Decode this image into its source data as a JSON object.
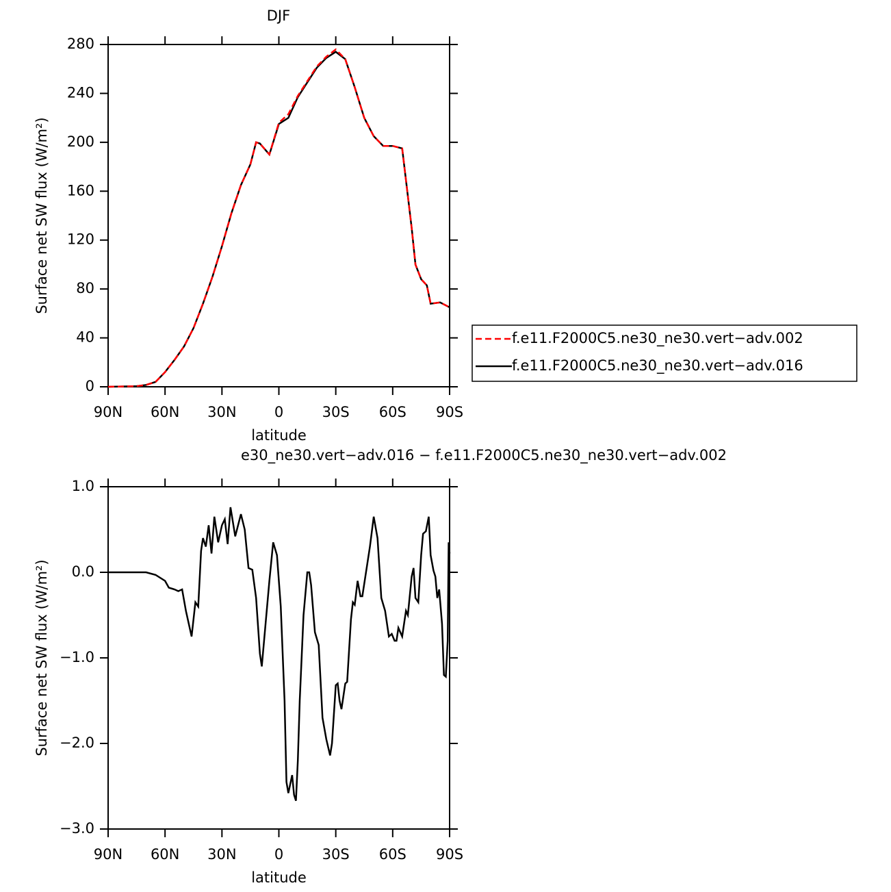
{
  "chart_data": [
    {
      "type": "line",
      "title": "DJF",
      "xlabel": "latitude",
      "ylabel": "Surface net SW flux (W/m²)",
      "x": [
        90,
        75,
        70,
        65,
        60,
        55,
        50,
        45,
        40,
        35,
        30,
        25,
        20,
        15,
        12,
        10,
        5,
        0,
        -5,
        -10,
        -15,
        -20,
        -25,
        -30,
        -35,
        -40,
        -45,
        -50,
        -55,
        -60,
        -65,
        -70,
        -72,
        -75,
        -78,
        -80,
        -85,
        -90
      ],
      "series": [
        {
          "name": "f.e11.F2000C5.ne30_ne30.vert−adv.002",
          "color": "#ff0000",
          "dashed": true,
          "values": [
            0,
            0.5,
            1.5,
            4,
            12,
            22,
            33,
            48,
            68,
            90,
            115,
            142,
            165,
            182,
            200,
            199,
            190,
            216,
            223,
            238,
            250,
            262,
            270,
            276,
            268,
            245,
            220,
            205,
            197,
            197,
            195,
            130,
            100,
            88,
            83,
            68,
            69,
            65
          ]
        },
        {
          "name": "f.e11.F2000C5.ne30_ne30.vert−adv.016",
          "color": "#000000",
          "dashed": false,
          "values": [
            0,
            0.5,
            1.5,
            4,
            12,
            22,
            33,
            48,
            68,
            90,
            115,
            142,
            165,
            182,
            200,
            199,
            190,
            215,
            220,
            237,
            249,
            261,
            269,
            274,
            268,
            245,
            220,
            205,
            197,
            197,
            195,
            130,
            100,
            88,
            83,
            68,
            69,
            65
          ]
        }
      ],
      "xlim": [
        90,
        -90
      ],
      "xticks": [
        {
          "value": 90,
          "label": "90N"
        },
        {
          "value": 60,
          "label": "60N"
        },
        {
          "value": 30,
          "label": "30N"
        },
        0,
        {
          "value": -30,
          "label": "30S"
        },
        {
          "value": -60,
          "label": "60S"
        },
        {
          "value": -90,
          "label": "90S"
        }
      ],
      "ylim": [
        0,
        280
      ],
      "yticks": [
        0,
        40,
        80,
        120,
        160,
        200,
        240,
        280
      ],
      "legend": "right"
    },
    {
      "type": "line",
      "title": "e30_ne30.vert−adv.016 − f.e11.F2000C5.ne30_ne30.vert−adv.002",
      "xlabel": "latitude",
      "ylabel": "Surface net SW flux (W/m²)",
      "x": [
        90,
        70,
        65,
        60,
        58,
        55,
        53,
        51,
        49,
        46,
        44,
        42.5,
        41,
        40,
        38.5,
        37,
        35.5,
        34,
        32,
        30,
        28.5,
        27,
        25.5,
        23,
        20,
        18,
        16,
        14,
        12,
        10,
        9,
        7,
        5,
        3,
        1,
        -1,
        -3,
        -4,
        -5,
        -7,
        -8,
        -9,
        -10,
        -11,
        -13,
        -15,
        -16,
        -17,
        -19,
        -21,
        -23,
        -25,
        -27,
        -28,
        -30,
        -31,
        -32,
        -33,
        -35,
        -36,
        -38,
        -39,
        -40,
        -41.5,
        -43,
        -44,
        -48,
        -50,
        -52,
        -54,
        -56,
        -58,
        -59.5,
        -61,
        -62,
        -63,
        -65,
        -67,
        -68,
        -70,
        -71,
        -72,
        -73.5,
        -75,
        -76,
        -77.5,
        -79,
        -80,
        -81.5,
        -82.5,
        -83.5,
        -84.5,
        -86,
        -87,
        -88,
        -89,
        -89.5,
        -90
      ],
      "series": [
        {
          "color": "#000000",
          "values": [
            0,
            0,
            -0.03,
            -0.1,
            -0.18,
            -0.2,
            -0.22,
            -0.2,
            -0.45,
            -0.75,
            -0.35,
            -0.4,
            0.25,
            0.4,
            0.3,
            0.55,
            0.22,
            0.65,
            0.35,
            0.55,
            0.62,
            0.33,
            0.76,
            0.42,
            0.68,
            0.5,
            0.05,
            0.03,
            -0.3,
            -0.95,
            -1.1,
            -0.6,
            -0.1,
            0.35,
            0.2,
            -0.4,
            -1.5,
            -2.45,
            -2.58,
            -2.37,
            -2.6,
            -2.67,
            -2.2,
            -1.5,
            -0.5,
            0,
            0,
            -0.15,
            -0.7,
            -0.85,
            -1.7,
            -1.95,
            -2.14,
            -2.0,
            -1.32,
            -1.3,
            -1.5,
            -1.6,
            -1.3,
            -1.28,
            -0.55,
            -0.35,
            -0.38,
            -0.1,
            -0.28,
            -0.28,
            0.3,
            0.65,
            0.4,
            -0.3,
            -0.45,
            -0.75,
            -0.72,
            -0.8,
            -0.8,
            -0.65,
            -0.75,
            -0.45,
            -0.5,
            -0.05,
            0.05,
            -0.3,
            -0.35,
            0.2,
            0.45,
            0.48,
            0.65,
            0.2,
            0.02,
            -0.05,
            -0.3,
            -0.2,
            -0.6,
            -1.2,
            -1.22,
            -0.8,
            0.35,
            0.22
          ]
        }
      ],
      "xlim": [
        90,
        -90
      ],
      "xticks": [
        {
          "value": 90,
          "label": "90N"
        },
        {
          "value": 60,
          "label": "60N"
        },
        {
          "value": 30,
          "label": "30N"
        },
        0,
        {
          "value": -30,
          "label": "30S"
        },
        {
          "value": -60,
          "label": "60S"
        },
        {
          "value": -90,
          "label": "90S"
        }
      ],
      "ylim": [
        -3,
        1
      ],
      "yticks": [
        {
          "value": -3,
          "label": "−3.0"
        },
        {
          "value": -2,
          "label": "−2.0"
        },
        {
          "value": -1,
          "label": "−1.0"
        },
        {
          "value": 0,
          "label": "0.0"
        },
        {
          "value": 1,
          "label": "1.0"
        }
      ]
    }
  ]
}
